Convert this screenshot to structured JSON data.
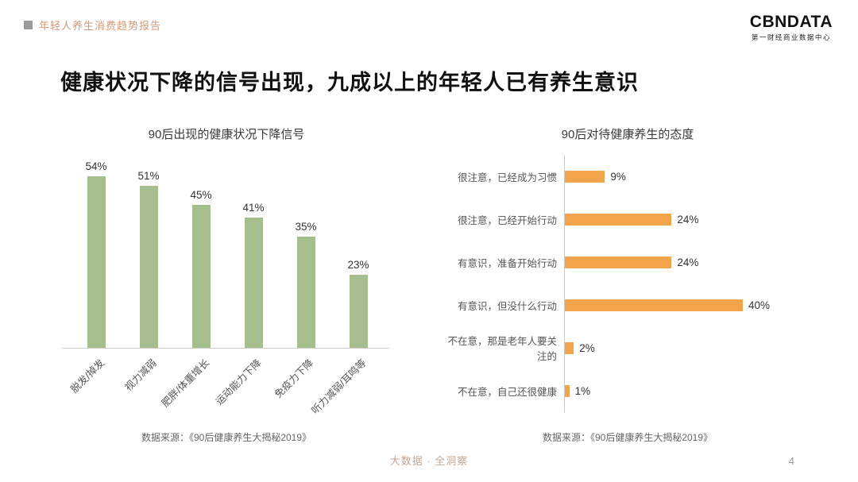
{
  "header": {
    "report_title": "年轻人养生消费趋势报告",
    "logo_text": "CBNDATA",
    "logo_subtitle": "第一财经商业数据中心",
    "bullet_color": "#9b9b9b",
    "accent_color": "#d29a79"
  },
  "title": "健康状况下降的信号出现，九成以上的年轻人已有养生意识",
  "chart_data": [
    {
      "type": "bar",
      "orientation": "vertical",
      "title": "90后出现的健康状况下降信号",
      "categories": [
        "脱发/掉发",
        "视力减弱",
        "肥胖/体重增长",
        "运动能力下降",
        "免疫力下降",
        "听力减弱/耳鸣等"
      ],
      "values": [
        54,
        51,
        45,
        41,
        35,
        23
      ],
      "unit": "%",
      "bar_color": "#a6bd8e",
      "ylim": [
        0,
        60
      ],
      "grid": false,
      "legend": "none",
      "source": "数据来源：《90后健康养生大揭秘2019》"
    },
    {
      "type": "bar",
      "orientation": "horizontal",
      "title": "90后对待健康养生的态度",
      "categories": [
        "很注意，已经成为习惯",
        "很注意，已经开始行动",
        "有意识，准备开始行动",
        "有意识，但没什么行动",
        "不在意，那是老年人要关注的",
        "不在意，自己还很健康"
      ],
      "values": [
        9,
        24,
        24,
        40,
        2,
        1
      ],
      "unit": "%",
      "bar_color": "#f2a44a",
      "xlim": [
        0,
        45
      ],
      "grid": false,
      "legend": "none",
      "source": "数据来源：《90后健康养生大揭秘2019》"
    }
  ],
  "footer": {
    "tagline": "大数据 · 全洞察",
    "page_number": "4"
  }
}
